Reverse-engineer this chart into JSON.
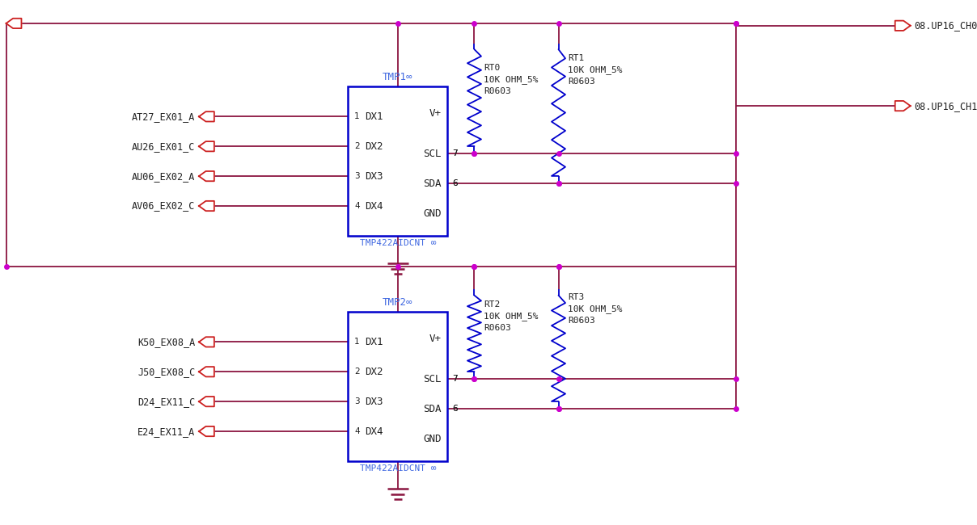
{
  "bg": "#ffffff",
  "wire": "#8b1540",
  "blue": "#0000cc",
  "tc": "#4169e1",
  "dark": "#202020",
  "dot": "#cc00cc",
  "rc": "#cc2020",
  "u1_left_pins": [
    "DX1",
    "DX2",
    "DX3",
    "DX4"
  ],
  "u1_left_nums": [
    "1",
    "2",
    "3",
    "4"
  ],
  "u1_right_pins_top": "V+",
  "u1_right_pins_mid1": "SCL",
  "u1_right_pins_mid2": "SDA",
  "u1_right_pins_bot": "GND",
  "u1_label": "TMP1∞",
  "u1_bot_label": "TMP422AIDCNT ∞",
  "u2_left_pins": [
    "DX1",
    "DX2",
    "DX3",
    "DX4"
  ],
  "u2_left_nums": [
    "1",
    "2",
    "3",
    "4"
  ],
  "u2_label": "TMP2∞",
  "u2_bot_label": "TMP422AIDCNT ∞",
  "conn_u1": [
    "AT27_EX01_A",
    "AU26_EX01_C",
    "AU06_EX02_A",
    "AV06_EX02_C"
  ],
  "conn_u2": [
    "K50_EX08_A",
    "J50_EX08_C",
    "D24_EX11_C",
    "E24_EX11_A"
  ],
  "conn_right_top": "08.UP16_CH0",
  "conn_right_bot": "08.UP16_CH1",
  "rt0_label": "RT0\n10K OHM_5%\nR0603",
  "rt1_label": "RT1\n10K OHM_5%\nR0603",
  "rt2_label": "RT2\n10K OHM_5%\nR0603",
  "rt3_label": "RT3\n10K OHM_5%\nR0603",
  "num_scl_u1": "7",
  "num_sda_u1": "6",
  "num_scl_u2": "7",
  "num_sda_u2": "6"
}
